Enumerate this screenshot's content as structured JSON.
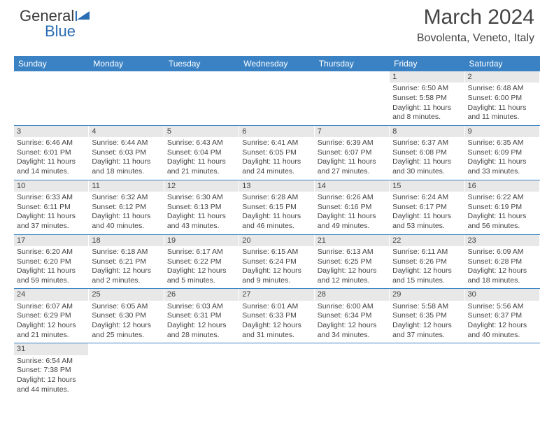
{
  "logo": {
    "part1": "General",
    "part2": "Blue"
  },
  "header": {
    "title": "March 2024",
    "location": "Bovolenta, Veneto, Italy"
  },
  "colors": {
    "header_bar": "#3b82c4",
    "daynum_bg": "#e8e8e8",
    "text": "#444444",
    "row_border": "#3b82c4"
  },
  "weekdays": [
    "Sunday",
    "Monday",
    "Tuesday",
    "Wednesday",
    "Thursday",
    "Friday",
    "Saturday"
  ],
  "rows": [
    [
      null,
      null,
      null,
      null,
      null,
      {
        "d": "1",
        "sr": "6:50 AM",
        "ss": "5:58 PM",
        "dl": "11 hours and 8 minutes."
      },
      {
        "d": "2",
        "sr": "6:48 AM",
        "ss": "6:00 PM",
        "dl": "11 hours and 11 minutes."
      }
    ],
    [
      {
        "d": "3",
        "sr": "6:46 AM",
        "ss": "6:01 PM",
        "dl": "11 hours and 14 minutes."
      },
      {
        "d": "4",
        "sr": "6:44 AM",
        "ss": "6:03 PM",
        "dl": "11 hours and 18 minutes."
      },
      {
        "d": "5",
        "sr": "6:43 AM",
        "ss": "6:04 PM",
        "dl": "11 hours and 21 minutes."
      },
      {
        "d": "6",
        "sr": "6:41 AM",
        "ss": "6:05 PM",
        "dl": "11 hours and 24 minutes."
      },
      {
        "d": "7",
        "sr": "6:39 AM",
        "ss": "6:07 PM",
        "dl": "11 hours and 27 minutes."
      },
      {
        "d": "8",
        "sr": "6:37 AM",
        "ss": "6:08 PM",
        "dl": "11 hours and 30 minutes."
      },
      {
        "d": "9",
        "sr": "6:35 AM",
        "ss": "6:09 PM",
        "dl": "11 hours and 33 minutes."
      }
    ],
    [
      {
        "d": "10",
        "sr": "6:33 AM",
        "ss": "6:11 PM",
        "dl": "11 hours and 37 minutes."
      },
      {
        "d": "11",
        "sr": "6:32 AM",
        "ss": "6:12 PM",
        "dl": "11 hours and 40 minutes."
      },
      {
        "d": "12",
        "sr": "6:30 AM",
        "ss": "6:13 PM",
        "dl": "11 hours and 43 minutes."
      },
      {
        "d": "13",
        "sr": "6:28 AM",
        "ss": "6:15 PM",
        "dl": "11 hours and 46 minutes."
      },
      {
        "d": "14",
        "sr": "6:26 AM",
        "ss": "6:16 PM",
        "dl": "11 hours and 49 minutes."
      },
      {
        "d": "15",
        "sr": "6:24 AM",
        "ss": "6:17 PM",
        "dl": "11 hours and 53 minutes."
      },
      {
        "d": "16",
        "sr": "6:22 AM",
        "ss": "6:19 PM",
        "dl": "11 hours and 56 minutes."
      }
    ],
    [
      {
        "d": "17",
        "sr": "6:20 AM",
        "ss": "6:20 PM",
        "dl": "11 hours and 59 minutes."
      },
      {
        "d": "18",
        "sr": "6:18 AM",
        "ss": "6:21 PM",
        "dl": "12 hours and 2 minutes."
      },
      {
        "d": "19",
        "sr": "6:17 AM",
        "ss": "6:22 PM",
        "dl": "12 hours and 5 minutes."
      },
      {
        "d": "20",
        "sr": "6:15 AM",
        "ss": "6:24 PM",
        "dl": "12 hours and 9 minutes."
      },
      {
        "d": "21",
        "sr": "6:13 AM",
        "ss": "6:25 PM",
        "dl": "12 hours and 12 minutes."
      },
      {
        "d": "22",
        "sr": "6:11 AM",
        "ss": "6:26 PM",
        "dl": "12 hours and 15 minutes."
      },
      {
        "d": "23",
        "sr": "6:09 AM",
        "ss": "6:28 PM",
        "dl": "12 hours and 18 minutes."
      }
    ],
    [
      {
        "d": "24",
        "sr": "6:07 AM",
        "ss": "6:29 PM",
        "dl": "12 hours and 21 minutes."
      },
      {
        "d": "25",
        "sr": "6:05 AM",
        "ss": "6:30 PM",
        "dl": "12 hours and 25 minutes."
      },
      {
        "d": "26",
        "sr": "6:03 AM",
        "ss": "6:31 PM",
        "dl": "12 hours and 28 minutes."
      },
      {
        "d": "27",
        "sr": "6:01 AM",
        "ss": "6:33 PM",
        "dl": "12 hours and 31 minutes."
      },
      {
        "d": "28",
        "sr": "6:00 AM",
        "ss": "6:34 PM",
        "dl": "12 hours and 34 minutes."
      },
      {
        "d": "29",
        "sr": "5:58 AM",
        "ss": "6:35 PM",
        "dl": "12 hours and 37 minutes."
      },
      {
        "d": "30",
        "sr": "5:56 AM",
        "ss": "6:37 PM",
        "dl": "12 hours and 40 minutes."
      }
    ],
    [
      {
        "d": "31",
        "sr": "6:54 AM",
        "ss": "7:38 PM",
        "dl": "12 hours and 44 minutes."
      },
      null,
      null,
      null,
      null,
      null,
      null
    ]
  ],
  "labels": {
    "sunrise": "Sunrise:",
    "sunset": "Sunset:",
    "daylight": "Daylight:"
  }
}
